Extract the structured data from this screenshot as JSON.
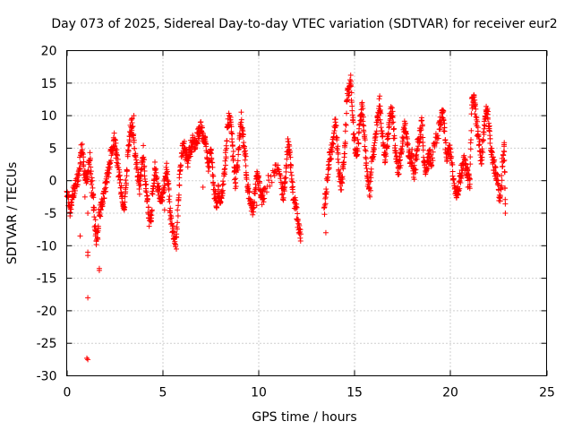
{
  "chart_data": {
    "type": "scatter",
    "title": "Day 073 of 2025, Sidereal Day-to-day VTEC variation (SDTVAR) for receiver eur2",
    "xlabel": "GPS time / hours",
    "ylabel": "SDTVAR / TECUs",
    "xlim": [
      0,
      25
    ],
    "ylim": [
      -30,
      20
    ],
    "xticks": [
      0,
      5,
      10,
      15,
      20,
      25
    ],
    "yticks": [
      -30,
      -25,
      -20,
      -15,
      -10,
      -5,
      0,
      5,
      10,
      15,
      20
    ],
    "grid": true,
    "marker": "+",
    "color": "#ff0000",
    "series": [
      {
        "name": "SDTVAR",
        "shape": [
          [
            0.0,
            -2.0
          ],
          [
            0.1,
            -3.0
          ],
          [
            0.2,
            -4.5
          ],
          [
            0.3,
            -2.5
          ],
          [
            0.4,
            -1.0
          ],
          [
            0.5,
            -0.5
          ],
          [
            0.6,
            1.0
          ],
          [
            0.7,
            3.0
          ],
          [
            0.8,
            5.0
          ],
          [
            0.9,
            2.0
          ],
          [
            1.0,
            -0.5
          ],
          [
            1.1,
            1.0
          ],
          [
            1.2,
            3.5
          ],
          [
            1.3,
            -0.5
          ],
          [
            1.4,
            -3.0
          ],
          [
            1.5,
            -8.5
          ],
          [
            1.6,
            -9.0
          ],
          [
            1.7,
            -5.0
          ],
          [
            1.8,
            -4.0
          ],
          [
            1.9,
            -3.0
          ],
          [
            2.0,
            -1.5
          ],
          [
            2.1,
            0.0
          ],
          [
            2.2,
            2.0
          ],
          [
            2.3,
            4.0
          ],
          [
            2.4,
            5.5
          ],
          [
            2.5,
            6.5
          ],
          [
            2.6,
            4.0
          ],
          [
            2.7,
            1.5
          ],
          [
            2.8,
            -0.5
          ],
          [
            2.9,
            -2.5
          ],
          [
            3.0,
            -4.5
          ],
          [
            3.1,
            0.0
          ],
          [
            3.2,
            4.5
          ],
          [
            3.3,
            7.0
          ],
          [
            3.4,
            9.0
          ],
          [
            3.5,
            6.0
          ],
          [
            3.6,
            3.0
          ],
          [
            3.7,
            1.0
          ],
          [
            3.8,
            -1.0
          ],
          [
            3.9,
            2.0
          ],
          [
            4.0,
            4.5
          ],
          [
            4.1,
            0.0
          ],
          [
            4.2,
            -3.0
          ],
          [
            4.3,
            -6.0
          ],
          [
            4.4,
            -5.5
          ],
          [
            4.5,
            -1.0
          ],
          [
            4.6,
            2.0
          ],
          [
            4.7,
            0.0
          ],
          [
            4.8,
            -1.5
          ],
          [
            4.9,
            -3.0
          ],
          [
            5.0,
            -3.0
          ],
          [
            5.1,
            -0.5
          ],
          [
            5.2,
            2.0
          ],
          [
            5.3,
            -1.0
          ],
          [
            5.4,
            -5.0
          ],
          [
            5.5,
            -7.5
          ],
          [
            5.6,
            -8.5
          ],
          [
            5.7,
            -9.5
          ],
          [
            5.8,
            -4.0
          ],
          [
            5.9,
            1.5
          ],
          [
            6.0,
            4.5
          ],
          [
            6.1,
            5.5
          ],
          [
            6.2,
            4.0
          ],
          [
            6.3,
            3.0
          ],
          [
            6.4,
            4.5
          ],
          [
            6.5,
            5.5
          ],
          [
            6.6,
            6.0
          ],
          [
            6.7,
            5.0
          ],
          [
            6.8,
            6.5
          ],
          [
            6.9,
            7.5
          ],
          [
            7.0,
            8.0
          ],
          [
            7.1,
            7.0
          ],
          [
            7.2,
            6.0
          ],
          [
            7.3,
            4.0
          ],
          [
            7.4,
            2.0
          ],
          [
            7.5,
            5.0
          ],
          [
            7.6,
            1.0
          ],
          [
            7.7,
            -2.0
          ],
          [
            7.8,
            -3.5
          ],
          [
            7.9,
            -1.5
          ],
          [
            8.0,
            -3.0
          ],
          [
            8.1,
            -2.0
          ],
          [
            8.2,
            1.0
          ],
          [
            8.3,
            4.0
          ],
          [
            8.4,
            9.0
          ],
          [
            8.5,
            10.0
          ],
          [
            8.6,
            7.0
          ],
          [
            8.7,
            3.0
          ],
          [
            8.8,
            -0.5
          ],
          [
            8.9,
            2.5
          ],
          [
            9.0,
            6.0
          ],
          [
            9.1,
            9.5
          ],
          [
            9.2,
            6.5
          ],
          [
            9.3,
            3.5
          ],
          [
            9.4,
            0.0
          ],
          [
            9.5,
            -2.5
          ],
          [
            9.6,
            -4.0
          ],
          [
            9.7,
            -4.5
          ],
          [
            9.8,
            -2.0
          ],
          [
            9.9,
            1.0
          ],
          [
            10.0,
            0.0
          ],
          [
            10.1,
            -1.5
          ],
          [
            10.2,
            -3.0
          ],
          [
            10.3,
            -2.0
          ],
          [
            10.8,
            1.0
          ],
          [
            11.0,
            2.5
          ],
          [
            11.2,
            -1.0
          ],
          [
            11.3,
            -2.5
          ],
          [
            11.4,
            0.5
          ],
          [
            11.5,
            5.5
          ],
          [
            11.6,
            5.0
          ],
          [
            11.7,
            1.5
          ],
          [
            11.8,
            -2.0
          ],
          [
            11.9,
            -3.5
          ],
          [
            12.0,
            -5.0
          ],
          [
            12.1,
            -7.5
          ],
          [
            12.2,
            -8.5
          ],
          [
            13.4,
            -5.0
          ],
          [
            13.5,
            -2.0
          ],
          [
            13.6,
            1.0
          ],
          [
            13.7,
            3.5
          ],
          [
            13.8,
            4.5
          ],
          [
            13.9,
            7.0
          ],
          [
            14.0,
            9.5
          ],
          [
            14.1,
            5.0
          ],
          [
            14.2,
            1.0
          ],
          [
            14.3,
            -1.0
          ],
          [
            14.4,
            2.0
          ],
          [
            14.5,
            5.0
          ],
          [
            14.6,
            13.0
          ],
          [
            14.7,
            14.0
          ],
          [
            14.8,
            15.5
          ],
          [
            14.9,
            10.0
          ],
          [
            15.0,
            6.0
          ],
          [
            15.1,
            3.0
          ],
          [
            15.2,
            6.5
          ],
          [
            15.3,
            9.5
          ],
          [
            15.4,
            11.5
          ],
          [
            15.5,
            7.0
          ],
          [
            15.6,
            3.0
          ],
          [
            15.7,
            -0.5
          ],
          [
            15.8,
            -1.5
          ],
          [
            15.9,
            3.0
          ],
          [
            16.0,
            4.5
          ],
          [
            16.1,
            7.0
          ],
          [
            16.2,
            10.0
          ],
          [
            16.3,
            12.0
          ],
          [
            16.4,
            8.0
          ],
          [
            16.5,
            5.0
          ],
          [
            16.6,
            3.5
          ],
          [
            16.7,
            5.5
          ],
          [
            16.8,
            9.0
          ],
          [
            16.9,
            11.0
          ],
          [
            17.0,
            9.5
          ],
          [
            17.1,
            5.0
          ],
          [
            17.2,
            3.0
          ],
          [
            17.3,
            1.5
          ],
          [
            17.4,
            3.5
          ],
          [
            17.5,
            6.0
          ],
          [
            17.6,
            8.5
          ],
          [
            17.7,
            7.0
          ],
          [
            17.8,
            4.5
          ],
          [
            17.9,
            2.5
          ],
          [
            18.0,
            4.0
          ],
          [
            18.1,
            1.0
          ],
          [
            18.2,
            3.0
          ],
          [
            18.3,
            6.0
          ],
          [
            18.4,
            7.0
          ],
          [
            18.5,
            9.0
          ],
          [
            18.6,
            4.0
          ],
          [
            18.7,
            1.5
          ],
          [
            18.8,
            2.5
          ],
          [
            18.9,
            4.0
          ],
          [
            19.0,
            3.0
          ],
          [
            19.2,
            6.0
          ],
          [
            19.4,
            8.0
          ],
          [
            19.5,
            9.5
          ],
          [
            19.6,
            10.5
          ],
          [
            19.7,
            7.0
          ],
          [
            19.8,
            3.0
          ],
          [
            19.9,
            5.5
          ],
          [
            20.0,
            4.0
          ],
          [
            20.1,
            1.5
          ],
          [
            20.2,
            -0.5
          ],
          [
            20.3,
            -2.0
          ],
          [
            20.4,
            -1.5
          ],
          [
            20.5,
            0.5
          ],
          [
            20.6,
            2.0
          ],
          [
            20.7,
            3.0
          ],
          [
            20.8,
            2.0
          ],
          [
            20.9,
            1.0
          ],
          [
            21.0,
            -1.0
          ],
          [
            21.1,
            11.5
          ],
          [
            21.2,
            12.5
          ],
          [
            21.3,
            11.0
          ],
          [
            21.4,
            7.5
          ],
          [
            21.5,
            5.5
          ],
          [
            21.6,
            3.0
          ],
          [
            21.7,
            6.0
          ],
          [
            21.8,
            10.0
          ],
          [
            21.9,
            11.0
          ],
          [
            22.0,
            8.0
          ],
          [
            22.1,
            5.0
          ],
          [
            22.2,
            3.0
          ],
          [
            22.3,
            2.0
          ],
          [
            22.4,
            1.0
          ],
          [
            22.5,
            -1.5
          ],
          [
            22.6,
            -3.0
          ],
          [
            22.7,
            3.0
          ],
          [
            22.8,
            5.0
          ],
          [
            22.85,
            -5.0
          ]
        ],
        "points": [
          [
            1.1,
            -11.0
          ],
          [
            1.1,
            -11.5
          ],
          [
            1.1,
            -18.0
          ],
          [
            1.05,
            -27.3
          ],
          [
            1.1,
            -27.5
          ],
          [
            1.7,
            -13.5
          ],
          [
            1.7,
            -13.8
          ],
          [
            0.7,
            -8.5
          ],
          [
            0.75,
            5.5
          ],
          [
            1.1,
            -5.0
          ],
          [
            0.95,
            -2.5
          ],
          [
            1.5,
            -6.0
          ],
          [
            13.5,
            -8.0
          ],
          [
            5.1,
            -4.5
          ],
          [
            10.5,
            0.8
          ],
          [
            9.9,
            -3.8
          ],
          [
            7.1,
            -1.0
          ],
          [
            21.0,
            0.2
          ],
          [
            20.9,
            -1.0
          ],
          [
            3.5,
            10.0
          ],
          [
            3.4,
            9.5
          ]
        ]
      }
    ]
  }
}
